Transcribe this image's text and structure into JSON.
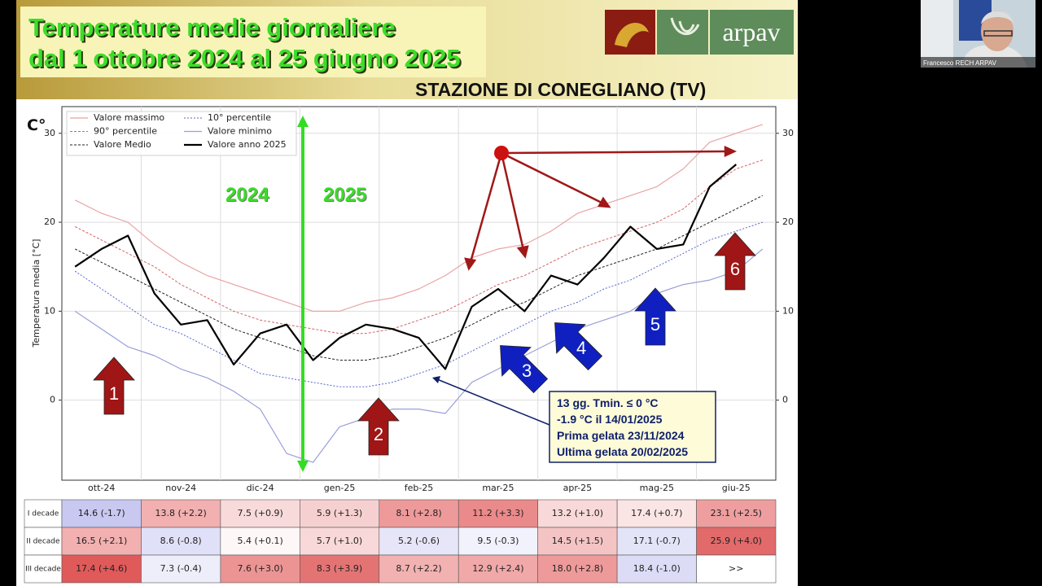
{
  "header": {
    "title_lines": [
      "Temperature medie giornaliere",
      "dal 1 ottobre 2024 al 25 giugno 2025"
    ],
    "station": "STAZIONE DI CONEGLIANO (TV)",
    "logo": "arpav"
  },
  "chart_data": {
    "type": "line",
    "y_unit": "C°",
    "ylabel": "Temperatura media [°C]",
    "categories": [
      null,
      "ott-24",
      null,
      null,
      "nov-24",
      null,
      null,
      "dic-24",
      null,
      null,
      "gen-25",
      null,
      null,
      "feb-25",
      null,
      null,
      "mar-25",
      null,
      null,
      "apr-25",
      null,
      null,
      "mag-25",
      null,
      null,
      "giu-25",
      null
    ],
    "series": [
      {
        "name": "Valore massimo",
        "color": "#e8a4a4",
        "style": "solid",
        "values": [
          22.5,
          21,
          20,
          17.5,
          15.5,
          14,
          13,
          12,
          11,
          10,
          10,
          11,
          11.5,
          12.5,
          14,
          16,
          17,
          17.5,
          19,
          21,
          22,
          23,
          24,
          26,
          29,
          30,
          31
        ]
      },
      {
        "name": "90° percentile",
        "color": "#d06464",
        "style": "dashed",
        "values": [
          19.5,
          18,
          16.5,
          15,
          13,
          11.5,
          10,
          9,
          8.5,
          8,
          7.5,
          7.5,
          8,
          9,
          10,
          11.5,
          13,
          14,
          15.5,
          17,
          18,
          19,
          20,
          21.5,
          24,
          26,
          27
        ]
      },
      {
        "name": "Valore Medio",
        "color": "#222222",
        "style": "dashed",
        "values": [
          17,
          15.5,
          14,
          12.5,
          11,
          9.5,
          8,
          7,
          6,
          5,
          4.5,
          4.5,
          5,
          6,
          7,
          8.5,
          10,
          11,
          12.5,
          14,
          15,
          16,
          17,
          18.5,
          20,
          21.5,
          23
        ]
      },
      {
        "name": "10° percentile",
        "color": "#5566cc",
        "style": "dotted",
        "values": [
          14.5,
          12.5,
          10.5,
          8.5,
          7.5,
          6,
          4.5,
          3,
          2.5,
          2,
          1.5,
          1.5,
          2,
          3,
          4,
          5.5,
          7,
          8.5,
          10,
          11,
          12.5,
          13.5,
          15,
          16.5,
          18,
          19,
          20
        ]
      },
      {
        "name": "Valore minimo",
        "color": "#9aa0d8",
        "style": "solid",
        "values": [
          10,
          8,
          6,
          5,
          3.5,
          2.5,
          1,
          -1,
          -6,
          -7,
          -3,
          -2,
          -1,
          -1,
          -1.5,
          2,
          3.5,
          5,
          6.5,
          8,
          9,
          10,
          12,
          13,
          13.5,
          14.5,
          17
        ]
      },
      {
        "name": "Valore anno 2025",
        "color": "#000000",
        "style": "bold",
        "values": [
          15,
          17,
          18.5,
          12,
          8.5,
          9,
          4,
          7.5,
          8.5,
          4.5,
          7,
          8.5,
          8,
          7,
          3.5,
          10.5,
          12.5,
          10,
          14,
          13,
          16,
          19.5,
          17,
          17.5,
          24,
          26.5,
          null
        ]
      }
    ],
    "ylim": [
      -9,
      33
    ],
    "yticks": [
      0,
      10,
      20,
      30
    ],
    "grid": true,
    "legend": "upper left",
    "annotations": [
      "2024",
      "2025"
    ],
    "arrows": [
      "1",
      "2",
      "3",
      "4",
      "5",
      "6"
    ],
    "note": [
      "13 gg. Tmin. ≤ 0 °C",
      "-1.9 °C il 14/01/2025",
      "Prima gelata 23/11/2024",
      "Ultima gelata 20/02/2025"
    ]
  },
  "table": {
    "row_headers": [
      "I decade",
      "II decade",
      "III decade"
    ],
    "rows": [
      [
        "14.6 (-1.7)",
        "13.8 (+2.2)",
        "7.5 (+0.9)",
        "5.9 (+1.3)",
        "8.1 (+2.8)",
        "11.2 (+3.3)",
        "13.2 (+1.0)",
        "17.4 (+0.7)",
        "23.1 (+2.5)"
      ],
      [
        "16.5 (+2.1)",
        "8.6 (-0.8)",
        "5.4 (+0.1)",
        "5.7 (+1.0)",
        "5.2 (-0.6)",
        "9.5 (-0.3)",
        "14.5 (+1.5)",
        "17.1 (-0.7)",
        "25.9 (+4.0)"
      ],
      [
        "17.4 (+4.6)",
        "7.3 (-0.4)",
        "7.6 (+3.0)",
        "8.3 (+3.9)",
        "8.7 (+2.2)",
        "12.9 (+2.4)",
        "18.0 (+2.8)",
        "18.4 (-1.0)",
        ">>"
      ]
    ],
    "colors": [
      [
        "#c8c8f0",
        "#f2b0b0",
        "#f8dada",
        "#f6d0d0",
        "#ee9a9a",
        "#ea8a8a",
        "#f8d8d8",
        "#fae4e4",
        "#ee9e9e"
      ],
      [
        "#f2b0b0",
        "#e0e0f8",
        "#fdf7f7",
        "#f8d8d8",
        "#e6e6f8",
        "#f2f2fc",
        "#f4c4c4",
        "#e4e4f8",
        "#e26a6a"
      ],
      [
        "#e05a5a",
        "#eeeefa",
        "#ec9494",
        "#e47474",
        "#f2b2b2",
        "#f0a8a8",
        "#ee9a9a",
        "#dcdcf6",
        "#ffffff"
      ]
    ]
  },
  "webcam": {
    "name": "Francesco RECH ARPAV"
  }
}
